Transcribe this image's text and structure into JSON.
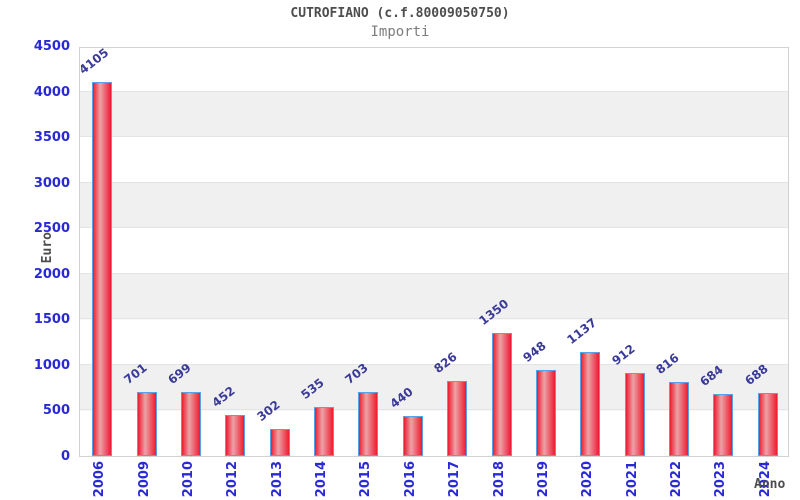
{
  "chart_data": {
    "type": "bar",
    "title": "CUTROFIANO (c.f.80009050750)",
    "subtitle": "Importi",
    "ylabel": "Euro",
    "xlabel": "Anno",
    "categories": [
      "2006",
      "2009",
      "2010",
      "2012",
      "2013",
      "2014",
      "2015",
      "2016",
      "2017",
      "2018",
      "2019",
      "2020",
      "2021",
      "2022",
      "2023",
      "2024"
    ],
    "values": [
      4105,
      701,
      699,
      452,
      302,
      535,
      703,
      440,
      826,
      1350,
      948,
      1137,
      912,
      816,
      684,
      688
    ],
    "ylim": [
      0,
      4500
    ],
    "yticks": [
      0,
      500,
      1000,
      1500,
      2000,
      2500,
      3000,
      3500,
      4000,
      4500
    ],
    "grid": true,
    "legend": "none",
    "band_shading": "alternating horizontal bands every 500 starting white at 0",
    "colors": {
      "bar_edge": "#ee1b2e",
      "bar_highlight": "#eca3a6",
      "bar_border": "#55a2e6",
      "axis_tick_label": "#2929d6",
      "value_label": "#3a3a99",
      "band_fill": "#f0f0f0",
      "gridline": "#e4e4e4",
      "plot_border": "#d2d2d2",
      "plot_background": "#ffffff",
      "title_color": "#4d4d4d",
      "subtitle_color": "#7d7d7d",
      "axis_title_color": "#4d4d4d"
    }
  }
}
